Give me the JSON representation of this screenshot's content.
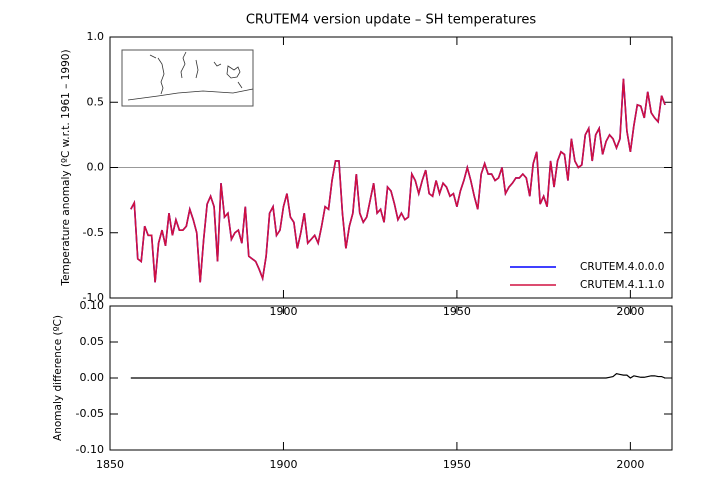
{
  "chart_data": [
    {
      "type": "line",
      "title": "CRUTEM4 version update – SH temperatures",
      "y_label": "Temperature anomaly (ºC w.r.t. 1961 – 1990)",
      "xlim": [
        1850,
        2012
      ],
      "ylim": [
        -1.0,
        1.0
      ],
      "xticks": [
        1900,
        1950,
        2000
      ],
      "yticks": [
        {
          "value": 1.0,
          "label": "1.0"
        },
        0.5,
        {
          "value": 0.0,
          "label": "0.0"
        },
        -0.5,
        {
          "value": -1.0,
          "label": "-1.0"
        }
      ],
      "reference_line": 0,
      "legend": "lower right",
      "x": [
        1856,
        1857,
        1858,
        1859,
        1860,
        1861,
        1862,
        1863,
        1864,
        1865,
        1866,
        1867,
        1868,
        1869,
        1870,
        1871,
        1872,
        1873,
        1874,
        1875,
        1876,
        1877,
        1878,
        1879,
        1880,
        1881,
        1882,
        1883,
        1884,
        1885,
        1886,
        1887,
        1888,
        1889,
        1890,
        1891,
        1892,
        1893,
        1894,
        1895,
        1896,
        1897,
        1898,
        1899,
        1900,
        1901,
        1902,
        1903,
        1904,
        1905,
        1906,
        1907,
        1908,
        1909,
        1910,
        1911,
        1912,
        1913,
        1914,
        1915,
        1916,
        1917,
        1918,
        1919,
        1920,
        1921,
        1922,
        1923,
        1924,
        1925,
        1926,
        1927,
        1928,
        1929,
        1930,
        1931,
        1932,
        1933,
        1934,
        1935,
        1936,
        1937,
        1938,
        1939,
        1940,
        1941,
        1942,
        1943,
        1944,
        1945,
        1946,
        1947,
        1948,
        1949,
        1950,
        1951,
        1952,
        1953,
        1954,
        1955,
        1956,
        1957,
        1958,
        1959,
        1960,
        1961,
        1962,
        1963,
        1964,
        1965,
        1966,
        1967,
        1968,
        1969,
        1970,
        1971,
        1972,
        1973,
        1974,
        1975,
        1976,
        1977,
        1978,
        1979,
        1980,
        1981,
        1982,
        1983,
        1984,
        1985,
        1986,
        1987,
        1988,
        1989,
        1990,
        1991,
        1992,
        1993,
        1994,
        1995,
        1996,
        1997,
        1998,
        1999,
        2000,
        2001,
        2002,
        2003,
        2004,
        2005,
        2006,
        2007,
        2008,
        2009,
        2010
      ],
      "series": [
        {
          "name": "CRUTEM.4.0.0.0",
          "color": "#0000ff",
          "values": [
            -0.32,
            -0.27,
            -0.7,
            -0.72,
            -0.45,
            -0.52,
            -0.52,
            -0.88,
            -0.58,
            -0.48,
            -0.6,
            -0.35,
            -0.52,
            -0.4,
            -0.48,
            -0.48,
            -0.45,
            -0.32,
            -0.4,
            -0.5,
            -0.88,
            -0.55,
            -0.28,
            -0.22,
            -0.3,
            -0.72,
            -0.12,
            -0.38,
            -0.35,
            -0.55,
            -0.5,
            -0.48,
            -0.58,
            -0.3,
            -0.68,
            -0.7,
            -0.72,
            -0.78,
            -0.85,
            -0.68,
            -0.35,
            -0.3,
            -0.52,
            -0.48,
            -0.3,
            -0.2,
            -0.38,
            -0.42,
            -0.62,
            -0.5,
            -0.35,
            -0.58,
            -0.55,
            -0.52,
            -0.58,
            -0.45,
            -0.3,
            -0.32,
            -0.1,
            0.05,
            0.05,
            -0.35,
            -0.62,
            -0.45,
            -0.35,
            -0.05,
            -0.35,
            -0.42,
            -0.38,
            -0.25,
            -0.12,
            -0.35,
            -0.32,
            -0.42,
            -0.15,
            -0.18,
            -0.28,
            -0.4,
            -0.35,
            -0.4,
            -0.38,
            -0.05,
            -0.1,
            -0.2,
            -0.1,
            -0.02,
            -0.2,
            -0.22,
            -0.1,
            -0.2,
            -0.12,
            -0.15,
            -0.22,
            -0.2,
            -0.3,
            -0.18,
            -0.1,
            0.0,
            -0.1,
            -0.22,
            -0.32,
            -0.05,
            0.03,
            -0.05,
            -0.05,
            -0.1,
            -0.08,
            0.0,
            -0.2,
            -0.15,
            -0.12,
            -0.08,
            -0.08,
            -0.05,
            -0.08,
            -0.22,
            0.03,
            0.12,
            -0.28,
            -0.22,
            -0.3,
            0.05,
            -0.15,
            0.05,
            0.12,
            0.1,
            -0.1,
            0.22,
            0.05,
            0.0,
            0.02,
            0.25,
            0.3,
            0.05,
            0.25,
            0.3,
            0.1,
            0.2,
            0.25,
            0.22,
            0.15,
            0.22,
            0.68,
            0.28,
            0.12,
            0.32,
            0.48,
            0.47,
            0.38,
            0.58,
            0.42,
            0.38,
            0.35,
            0.55,
            0.48
          ]
        },
        {
          "name": "CRUTEM.4.1.1.0",
          "color": "#d01040",
          "values": [
            -0.32,
            -0.27,
            -0.7,
            -0.72,
            -0.45,
            -0.52,
            -0.52,
            -0.88,
            -0.58,
            -0.48,
            -0.6,
            -0.35,
            -0.52,
            -0.4,
            -0.48,
            -0.48,
            -0.45,
            -0.32,
            -0.4,
            -0.5,
            -0.88,
            -0.55,
            -0.28,
            -0.22,
            -0.3,
            -0.72,
            -0.12,
            -0.38,
            -0.35,
            -0.55,
            -0.5,
            -0.48,
            -0.58,
            -0.3,
            -0.68,
            -0.7,
            -0.72,
            -0.78,
            -0.85,
            -0.68,
            -0.35,
            -0.3,
            -0.52,
            -0.48,
            -0.3,
            -0.2,
            -0.38,
            -0.42,
            -0.62,
            -0.5,
            -0.35,
            -0.58,
            -0.55,
            -0.52,
            -0.58,
            -0.45,
            -0.3,
            -0.32,
            -0.1,
            0.05,
            0.05,
            -0.35,
            -0.62,
            -0.45,
            -0.35,
            -0.05,
            -0.35,
            -0.42,
            -0.38,
            -0.25,
            -0.12,
            -0.35,
            -0.32,
            -0.42,
            -0.15,
            -0.18,
            -0.28,
            -0.4,
            -0.35,
            -0.4,
            -0.38,
            -0.05,
            -0.1,
            -0.2,
            -0.1,
            -0.02,
            -0.2,
            -0.22,
            -0.1,
            -0.2,
            -0.12,
            -0.15,
            -0.22,
            -0.2,
            -0.3,
            -0.18,
            -0.1,
            0.0,
            -0.1,
            -0.22,
            -0.32,
            -0.05,
            0.03,
            -0.05,
            -0.05,
            -0.1,
            -0.08,
            0.0,
            -0.2,
            -0.15,
            -0.12,
            -0.08,
            -0.08,
            -0.05,
            -0.08,
            -0.22,
            0.03,
            0.12,
            -0.28,
            -0.22,
            -0.3,
            0.05,
            -0.15,
            0.05,
            0.12,
            0.1,
            -0.1,
            0.22,
            0.05,
            0.0,
            0.02,
            0.25,
            0.3,
            0.05,
            0.25,
            0.3,
            0.1,
            0.2,
            0.25,
            0.22,
            0.15,
            0.22,
            0.68,
            0.28,
            0.12,
            0.32,
            0.48,
            0.47,
            0.38,
            0.58,
            0.42,
            0.38,
            0.35,
            0.55,
            0.48
          ]
        }
      ]
    },
    {
      "type": "line",
      "y_label": "Anomaly difference (ºC)",
      "xlim": [
        1850,
        2012
      ],
      "ylim": [
        -0.1,
        0.1
      ],
      "xticks": [
        1850,
        1900,
        1950,
        2000
      ],
      "yticks": [
        {
          "value": 0.1,
          "label": "0.10"
        },
        0.05,
        {
          "value": 0.0,
          "label": "0.00"
        },
        -0.05,
        {
          "value": -0.1,
          "label": "-0.10"
        }
      ],
      "x": [
        1856,
        1857,
        1858,
        1859,
        1860,
        1861,
        1862,
        1863,
        1864,
        1865,
        1866,
        1867,
        1868,
        1869,
        1870,
        1871,
        1872,
        1873,
        1874,
        1875,
        1876,
        1877,
        1878,
        1879,
        1880,
        1881,
        1882,
        1883,
        1884,
        1885,
        1886,
        1887,
        1888,
        1889,
        1890,
        1891,
        1892,
        1893,
        1894,
        1895,
        1896,
        1897,
        1898,
        1899,
        1900,
        1901,
        1902,
        1903,
        1904,
        1905,
        1906,
        1907,
        1908,
        1909,
        1910,
        1911,
        1912,
        1913,
        1914,
        1915,
        1916,
        1917,
        1918,
        1919,
        1920,
        1921,
        1922,
        1923,
        1924,
        1925,
        1926,
        1927,
        1928,
        1929,
        1930,
        1931,
        1932,
        1933,
        1934,
        1935,
        1936,
        1937,
        1938,
        1939,
        1940,
        1941,
        1942,
        1943,
        1944,
        1945,
        1946,
        1947,
        1948,
        1949,
        1950,
        1951,
        1952,
        1953,
        1954,
        1955,
        1956,
        1957,
        1958,
        1959,
        1960,
        1961,
        1962,
        1963,
        1964,
        1965,
        1966,
        1967,
        1968,
        1969,
        1970,
        1971,
        1972,
        1973,
        1974,
        1975,
        1976,
        1977,
        1978,
        1979,
        1980,
        1981,
        1982,
        1983,
        1984,
        1985,
        1986,
        1987,
        1988,
        1989,
        1990,
        1991,
        1992,
        1993,
        1994,
        1995,
        1996,
        1997,
        1998,
        1999,
        2000,
        2001,
        2002,
        2003,
        2004,
        2005,
        2006,
        2007,
        2008,
        2009,
        2010
      ],
      "series": [
        {
          "color": "#000000",
          "values": [
            0,
            0,
            0,
            0,
            0,
            0,
            0,
            0,
            0,
            0,
            0,
            0,
            0,
            0,
            0,
            0,
            0,
            0,
            0,
            0,
            0,
            0,
            0,
            0,
            0,
            0,
            0,
            0,
            0,
            0,
            0,
            0,
            0,
            0,
            0,
            0,
            0,
            0,
            0,
            0,
            0,
            0,
            0,
            0,
            0,
            0,
            0,
            0,
            0,
            0,
            0,
            0,
            0,
            0,
            0,
            0,
            0,
            0,
            0,
            0,
            0,
            0,
            0,
            0,
            0,
            0,
            0,
            0,
            0,
            0,
            0,
            0,
            0,
            0,
            0,
            0,
            0,
            0,
            0,
            0,
            0,
            0,
            0,
            0,
            0,
            0,
            0,
            0,
            0,
            0,
            0,
            0,
            0,
            0,
            0,
            0,
            0,
            0,
            0,
            0,
            0,
            0,
            0,
            0,
            0,
            0,
            0,
            0,
            0,
            0,
            0,
            0,
            0,
            0,
            0,
            0,
            0,
            0,
            0,
            0,
            0,
            0,
            0,
            0,
            0,
            0,
            0,
            0,
            0,
            0,
            0,
            0,
            0,
            0,
            0,
            0,
            0,
            0,
            0.001,
            0.002,
            0.006,
            0.005,
            0.004,
            0.004,
            0.0,
            0.003,
            0.002,
            0.001,
            0.001,
            0.002,
            0.003,
            0.003,
            0.002,
            0.002,
            0.0
          ]
        }
      ]
    }
  ]
}
